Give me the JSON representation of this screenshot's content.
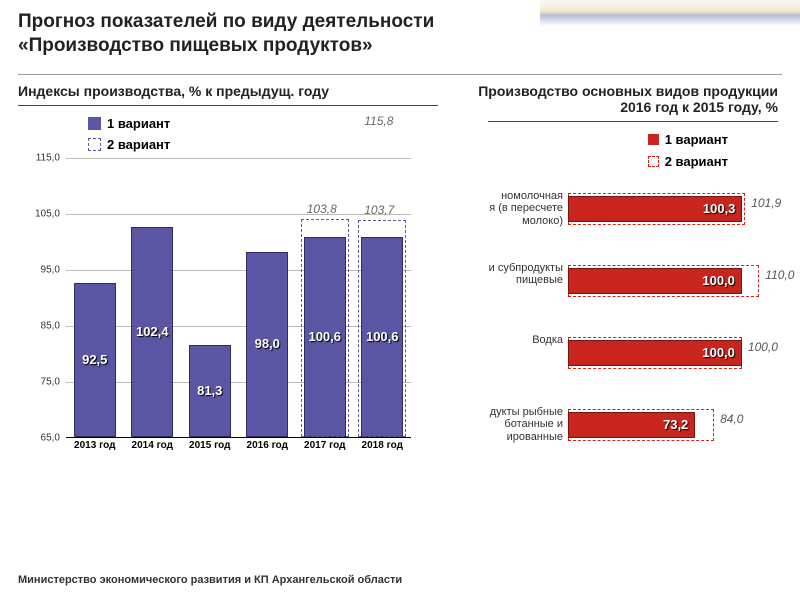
{
  "title_l1": "Прогноз показателей по виду деятельности",
  "title_l2": "«Производство пищевых продуктов»",
  "footer": "Министерство экономического развития и КП Архангельской области",
  "left_chart": {
    "subtitle": "Индексы производства, % к предыдущ. году",
    "legend_v1": "1 вариант",
    "legend_v2": "2 вариант",
    "ymin": 65,
    "ymax": 115,
    "ystep": 10,
    "yticks": [
      "65,0",
      "75,0",
      "85,0",
      "95,0",
      "105,0",
      "115,0"
    ],
    "categories": [
      "2013 год",
      "2014 год",
      "2015 год",
      "2016 год",
      "2017 год",
      "2018 год"
    ],
    "bar_color": "#5a56a3",
    "background_color": "#ffffff",
    "values_v1": [
      92.5,
      102.4,
      81.3,
      98.0,
      100.6,
      100.6
    ],
    "labels_v1": [
      "92,5",
      "102,4",
      "81,3",
      "98,0",
      "100,6",
      "100,6"
    ],
    "overlay_v2": {
      "index": 4,
      "value": 103.8,
      "label": "103,8"
    },
    "overlay_v2b": {
      "index": 5,
      "value": 103.7,
      "label": "103,7"
    },
    "top_label": {
      "index": 5,
      "label": "115,8"
    }
  },
  "right_chart": {
    "subtitle_l1": "Производство основных видов продукции",
    "subtitle_l2": "2016 год к 2015 году, %",
    "legend_v1": "1 вариант",
    "legend_v2": "2 вариант",
    "bar_color": "#c8251e",
    "xmax": 115,
    "rows": [
      {
        "cat": "номолочная\nя (в пересчете\nмолоко)",
        "v1": 100.3,
        "v1_lbl": "100,3",
        "v2": 101.9,
        "v2_lbl": "101,9"
      },
      {
        "cat": "и субпродукты\nпищевые",
        "v1": 100.0,
        "v1_lbl": "100,0",
        "v2": 110.0,
        "v2_lbl": "110,0"
      },
      {
        "cat": "Водка",
        "v1": 100.0,
        "v1_lbl": "100,0",
        "v2": 100.0,
        "v2_lbl": "100,0"
      },
      {
        "cat": "дукты рыбные\nботанные и\nированные",
        "v1": 73.2,
        "v1_lbl": "73,2",
        "v2": 84.0,
        "v2_lbl": "84,0"
      }
    ]
  }
}
